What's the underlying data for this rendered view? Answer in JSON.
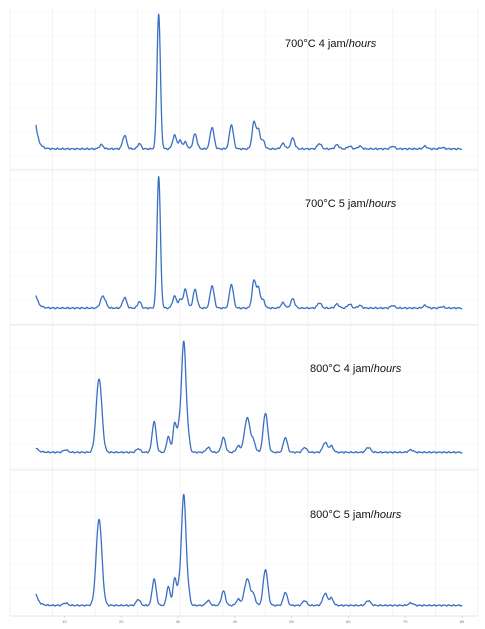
{
  "chart_data": {
    "type": "line",
    "grid": true,
    "xlim": [
      5,
      80
    ],
    "x_ticks": [
      "10",
      "20",
      "30",
      "40",
      "50",
      "60",
      "70",
      "80"
    ],
    "series_color": "#3a6fc4",
    "panels": [
      {
        "label_prefix": "700°C 4 jam/",
        "label_suffix": "hours",
        "baseline": 6,
        "ylim": [
          0,
          100
        ],
        "start_rise": 18,
        "peaks": [
          [
            16.5,
            3,
            0.35
          ],
          [
            20.6,
            10,
            0.35
          ],
          [
            23.2,
            4,
            0.3
          ],
          [
            26.6,
            100,
            0.3
          ],
          [
            29.4,
            10,
            0.35
          ],
          [
            30.4,
            6,
            0.3
          ],
          [
            31.3,
            5,
            0.3
          ],
          [
            33.0,
            11,
            0.35
          ],
          [
            36.0,
            16,
            0.35
          ],
          [
            39.4,
            18,
            0.35
          ],
          [
            43.4,
            20,
            0.35
          ],
          [
            44.2,
            13,
            0.3
          ],
          [
            45.0,
            6,
            0.3
          ],
          [
            48.5,
            4,
            0.35
          ],
          [
            50.2,
            8,
            0.35
          ],
          [
            54.9,
            4,
            0.35
          ],
          [
            58.0,
            3,
            0.35
          ],
          [
            60.2,
            2,
            0.35
          ],
          [
            62.0,
            2,
            0.35
          ],
          [
            67.8,
            2,
            0.35
          ],
          [
            73.5,
            2,
            0.35
          ],
          [
            76.5,
            1,
            0.35
          ]
        ]
      },
      {
        "label_prefix": "700°C  5 jam/",
        "label_suffix": "hours",
        "baseline": 6,
        "ylim": [
          0,
          100
        ],
        "start_rise": 10,
        "peaks": [
          [
            16.8,
            9,
            0.45
          ],
          [
            20.6,
            8,
            0.35
          ],
          [
            23.2,
            5,
            0.3
          ],
          [
            26.6,
            100,
            0.3
          ],
          [
            29.4,
            9,
            0.35
          ],
          [
            30.4,
            6,
            0.3
          ],
          [
            31.3,
            14,
            0.35
          ],
          [
            33.0,
            14,
            0.35
          ],
          [
            36.0,
            17,
            0.35
          ],
          [
            39.4,
            18,
            0.35
          ],
          [
            43.4,
            21,
            0.35
          ],
          [
            44.2,
            14,
            0.3
          ],
          [
            45.0,
            6,
            0.3
          ],
          [
            48.5,
            4,
            0.35
          ],
          [
            50.2,
            7,
            0.35
          ],
          [
            54.9,
            4,
            0.35
          ],
          [
            58.0,
            3,
            0.35
          ],
          [
            60.2,
            3,
            0.35
          ],
          [
            62.0,
            2,
            0.35
          ],
          [
            67.8,
            2,
            0.35
          ],
          [
            73.5,
            2,
            0.35
          ],
          [
            76.5,
            1,
            0.35
          ]
        ]
      },
      {
        "label_prefix": "800°C 4 jam/",
        "label_suffix": "hours",
        "baseline": 3,
        "ylim": [
          0,
          100
        ],
        "start_rise": 4,
        "peaks": [
          [
            10.2,
            2,
            0.4
          ],
          [
            16.1,
            60,
            0.5
          ],
          [
            23.0,
            3,
            0.35
          ],
          [
            25.8,
            25,
            0.35
          ],
          [
            28.3,
            13,
            0.3
          ],
          [
            29.4,
            23,
            0.3
          ],
          [
            30.1,
            16,
            0.3
          ],
          [
            31.0,
            90,
            0.4
          ],
          [
            31.8,
            10,
            0.3
          ],
          [
            35.3,
            4,
            0.35
          ],
          [
            38.0,
            12,
            0.35
          ],
          [
            40.6,
            5,
            0.35
          ],
          [
            42.2,
            28,
            0.5
          ],
          [
            43.3,
            8,
            0.35
          ],
          [
            45.4,
            32,
            0.4
          ],
          [
            48.9,
            12,
            0.35
          ],
          [
            52.3,
            4,
            0.35
          ],
          [
            55.9,
            8,
            0.4
          ],
          [
            57.0,
            5,
            0.35
          ],
          [
            63.5,
            4,
            0.4
          ],
          [
            71.0,
            2,
            0.4
          ]
        ]
      },
      {
        "label_prefix": "800°C  5 jam/",
        "label_suffix": "hours",
        "baseline": 3,
        "ylim": [
          0,
          100
        ],
        "start_rise": 10,
        "peaks": [
          [
            10.2,
            2,
            0.4
          ],
          [
            16.1,
            72,
            0.5
          ],
          [
            23.0,
            5,
            0.35
          ],
          [
            25.8,
            22,
            0.35
          ],
          [
            28.3,
            16,
            0.3
          ],
          [
            29.4,
            22,
            0.3
          ],
          [
            30.1,
            12,
            0.3
          ],
          [
            31.0,
            92,
            0.4
          ],
          [
            31.8,
            10,
            0.3
          ],
          [
            35.3,
            4,
            0.35
          ],
          [
            38.0,
            12,
            0.35
          ],
          [
            40.6,
            5,
            0.35
          ],
          [
            42.2,
            22,
            0.5
          ],
          [
            43.3,
            8,
            0.35
          ],
          [
            45.4,
            30,
            0.4
          ],
          [
            48.9,
            11,
            0.35
          ],
          [
            52.3,
            4,
            0.35
          ],
          [
            55.9,
            10,
            0.4
          ],
          [
            57.0,
            6,
            0.35
          ],
          [
            63.5,
            4,
            0.4
          ],
          [
            71.0,
            2,
            0.4
          ]
        ]
      }
    ]
  }
}
